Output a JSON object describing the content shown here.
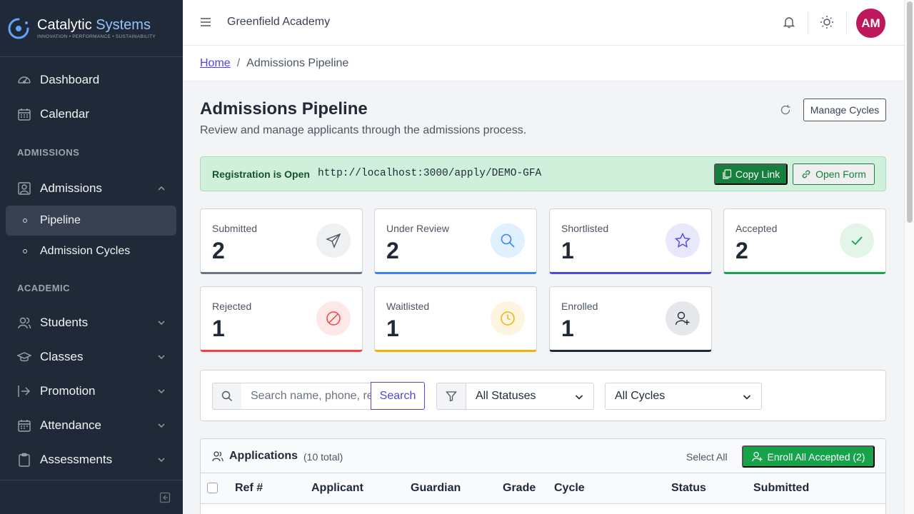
{
  "brand": {
    "name": "Catalytic",
    "name_accent": "Systems",
    "tagline": "INNOVATION • PERFORMANCE • SUSTAINABILITY"
  },
  "sidebar": {
    "top_items": [
      {
        "label": "Dashboard",
        "icon": "gauge-icon"
      },
      {
        "label": "Calendar",
        "icon": "calendar-icon"
      }
    ],
    "admissions_section": "ADMISSIONS",
    "admissions": {
      "label": "Admissions",
      "icon": "admissions-icon"
    },
    "admissions_sub": [
      {
        "label": "Pipeline",
        "active": true
      },
      {
        "label": "Admission Cycles",
        "active": false
      }
    ],
    "academic_section": "ACADEMIC",
    "academic_items": [
      {
        "label": "Students",
        "icon": "students-icon"
      },
      {
        "label": "Classes",
        "icon": "graduation-cap-icon"
      },
      {
        "label": "Promotion",
        "icon": "promotion-icon"
      },
      {
        "label": "Attendance",
        "icon": "attendance-icon"
      },
      {
        "label": "Assessments",
        "icon": "clipboard-icon"
      }
    ]
  },
  "topbar": {
    "school": "Greenfield Academy",
    "avatar_initials": "AM",
    "avatar_color": "#be185d"
  },
  "breadcrumb": {
    "home": "Home",
    "separator": "/",
    "current": "Admissions Pipeline"
  },
  "header": {
    "title": "Admissions Pipeline",
    "subtitle": "Review and manage applicants through the admissions process.",
    "manage_cycles": "Manage Cycles"
  },
  "registration": {
    "label": "Registration is Open",
    "url": "http://localhost:3000/apply/DEMO-GFA",
    "copy_label": "Copy Link",
    "open_label": "Open Form"
  },
  "stats": [
    {
      "label": "Submitted",
      "value": "2",
      "color": "#6b7280",
      "icon": "paper-plane-icon"
    },
    {
      "label": "Under Review",
      "value": "2",
      "color": "#3b82f6",
      "icon": "search-icon"
    },
    {
      "label": "Shortlisted",
      "value": "1",
      "color": "#4f46e5",
      "icon": "star-icon"
    },
    {
      "label": "Accepted",
      "value": "2",
      "color": "#16a34a",
      "icon": "check-icon"
    },
    {
      "label": "Rejected",
      "value": "1",
      "color": "#ef4444",
      "icon": "ban-icon"
    },
    {
      "label": "Waitlisted",
      "value": "1",
      "color": "#eab308",
      "icon": "clock-icon"
    },
    {
      "label": "Enrolled",
      "value": "1",
      "color": "#1f2937",
      "icon": "user-plus-icon"
    }
  ],
  "filters": {
    "search_placeholder": "Search name, phone, ref...",
    "search_button": "Search",
    "status_selected": "All Statuses",
    "cycle_selected": "All Cycles"
  },
  "applications": {
    "title": "Applications",
    "count": "(10 total)",
    "select_all": "Select All",
    "enroll_button": "Enroll All Accepted (2)",
    "columns": [
      "Ref #",
      "Applicant",
      "Guardian",
      "Grade",
      "Cycle",
      "Status",
      "Submitted"
    ]
  }
}
